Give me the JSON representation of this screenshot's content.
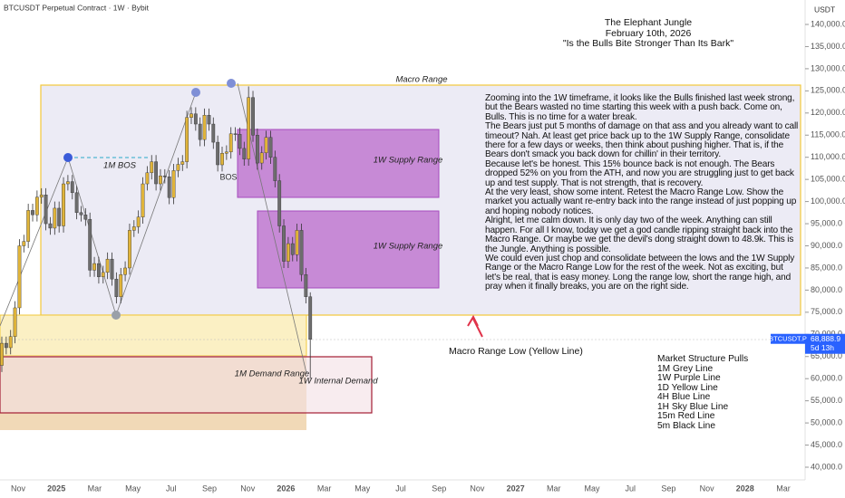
{
  "chart_data": {
    "type": "candlestick",
    "header": "BTCUSDT Perpetual Contract · 1W · Bybit",
    "currency": "USDT",
    "title_lines": [
      "The Elephant Jungle",
      "February 10th, 2026",
      "\"Is the Bulls Bite Stronger Than Its Bark\""
    ],
    "categories": [
      "Nov",
      "2025",
      "Mar",
      "May",
      "Jul",
      "Sep",
      "Nov",
      "2026",
      "Mar",
      "May",
      "Jul",
      "Sep",
      "Nov",
      "2027",
      "Mar",
      "May",
      "Jul",
      "Sep",
      "Nov",
      "2028",
      "Mar"
    ],
    "ylim": [
      40000,
      140000
    ],
    "yticks": [
      {
        "value": 40000,
        "label": "40,000.0"
      },
      {
        "value": 45000,
        "label": "45,000.0"
      },
      {
        "value": 50000,
        "label": "50,000.0"
      },
      {
        "value": 55000,
        "label": "55,000.0"
      },
      {
        "value": 60000,
        "label": "60,000.0"
      },
      {
        "value": 65000,
        "label": "65,000.0"
      },
      {
        "value": 70000,
        "label": "70,000.0"
      },
      {
        "value": 75000,
        "label": "75,000.0"
      },
      {
        "value": 80000,
        "label": "80,000.0"
      },
      {
        "value": 85000,
        "label": "85,000.0"
      },
      {
        "value": 90000,
        "label": "90,000.0"
      },
      {
        "value": 95000,
        "label": "95,000.0"
      },
      {
        "value": 100000,
        "label": "100,000.0"
      },
      {
        "value": 105000,
        "label": "105,000.0"
      },
      {
        "value": 110000,
        "label": "110,000.0"
      },
      {
        "value": 115000,
        "label": "115,000.0"
      },
      {
        "value": 120000,
        "label": "120,000.0"
      },
      {
        "value": 125000,
        "label": "125,000.0"
      },
      {
        "value": 130000,
        "label": "130,000.0"
      },
      {
        "value": 135000,
        "label": "135,000.0"
      },
      {
        "value": 140000,
        "label": "140,000.0"
      }
    ],
    "up_color": "#e0b43a",
    "down_color": "#6d6d6d",
    "open": [
      63000,
      68000,
      67000,
      69500,
      76000,
      90000,
      91000,
      98000,
      97000,
      101000,
      101500,
      95000,
      94000,
      98500,
      94500,
      104000,
      104500,
      102000,
      97500,
      97000,
      96000,
      84500,
      86000,
      83000,
      84000,
      87000,
      82500,
      78500,
      83500,
      85000,
      93500,
      94300,
      96500,
      104000,
      106500,
      109000,
      104000,
      105800,
      105600,
      100900,
      107000,
      108400,
      109000,
      119000,
      119800,
      117500,
      114000,
      119500,
      117500,
      113400,
      108300,
      110900,
      111200,
      115300,
      115200,
      112000,
      109600,
      123500,
      115000,
      108700,
      111000,
      114500,
      110000,
      104700,
      94500,
      86500,
      90500,
      88000,
      93500,
      83500,
      78500
    ],
    "high": [
      69500,
      69500,
      71000,
      77500,
      91500,
      92500,
      99500,
      99500,
      102500,
      103000,
      103000,
      96500,
      100000,
      100000,
      105500,
      106000,
      106000,
      103500,
      99000,
      98500,
      97500,
      87500,
      87500,
      85500,
      88500,
      88500,
      84000,
      85000,
      86500,
      95000,
      95800,
      98000,
      105500,
      108000,
      110500,
      110500,
      107300,
      107300,
      107100,
      108500,
      109900,
      110500,
      120500,
      121300,
      121300,
      119000,
      121000,
      121000,
      119000,
      114900,
      112400,
      112700,
      116800,
      116800,
      116700,
      113500,
      126000,
      125000,
      116500,
      112500,
      116000,
      116000,
      111500,
      106200,
      96000,
      92000,
      92000,
      95000,
      95000,
      85000,
      79500
    ],
    "low": [
      61500,
      65500,
      65500,
      68000,
      74500,
      88500,
      89500,
      95500,
      95500,
      99500,
      93500,
      92500,
      92500,
      93000,
      93000,
      102500,
      100500,
      96000,
      95500,
      94500,
      83000,
      83000,
      81500,
      81500,
      82500,
      81000,
      77000,
      77000,
      82000,
      83500,
      92000,
      92800,
      95000,
      102500,
      105000,
      102500,
      102500,
      104100,
      99400,
      99400,
      105500,
      106900,
      107500,
      117500,
      116000,
      112500,
      112500,
      116000,
      111900,
      106800,
      106800,
      109400,
      109700,
      113700,
      110500,
      108100,
      108100,
      113500,
      107200,
      107200,
      109500,
      108500,
      103200,
      93000,
      85000,
      85000,
      86500,
      86500,
      82000,
      77000,
      60000
    ],
    "close": [
      68000,
      67000,
      69500,
      76000,
      90000,
      91000,
      98000,
      97000,
      101000,
      101500,
      95000,
      94000,
      98500,
      94500,
      104000,
      104500,
      102000,
      97500,
      97000,
      96000,
      84500,
      86000,
      83000,
      84000,
      87000,
      82500,
      78500,
      83500,
      85000,
      93500,
      94300,
      96500,
      104000,
      106500,
      109000,
      104000,
      105800,
      105600,
      100900,
      107000,
      108400,
      109000,
      119000,
      119800,
      117500,
      114000,
      119500,
      117500,
      113400,
      108300,
      110900,
      111200,
      115300,
      115200,
      112000,
      109600,
      123500,
      115000,
      108700,
      111000,
      114500,
      110000,
      104700,
      94500,
      86500,
      90500,
      88000,
      93500,
      83500,
      78500,
      68888.9
    ],
    "last_price": {
      "symbol": "BTCUSDT.P",
      "value": 68888.9,
      "label": "68,888.9",
      "countdown": "5d 13h"
    },
    "zones": {
      "macro": "Macro Range",
      "supply_upper": "1W Supply Range",
      "supply_lower": "1W Supply Range",
      "demand": "1M Demand Range",
      "internal_demand": "1W Internal Demand"
    },
    "markers": {
      "bos_monthly": "1M BOS",
      "bos": "BOS"
    },
    "macro_low_note": "Macro Range Low (Yellow Line)",
    "commentary": [
      "Zooming into the 1W timeframe, it looks like the Bulls finished last week strong, but the Bears wasted no time starting this week with a push back. Come on, Bulls. This is no time for a water break.",
      "The Bears just put 5 months of damage on that ass and you already want to call timeout? Nah. At least get price back up to the 1W Supply Range, consolidate there for a few days or weeks, then think about pushing higher. That is, if the Bears don't smack you back down for chillin' in their territory.",
      "Because let's be honest. This 15% bounce back is not enough. The Bears dropped 52% on you from the ATH, and now you are struggling just to get back up and test supply. That is not strength, that is recovery.",
      "At the very least, show some intent. Retest the Macro Range Low. Show the market you actually want re-entry back into the range instead of just popping up and hoping nobody notices.",
      "Alright, let me calm down. It is only day two of the week. Anything can still happen. For all I know, today we get a god candle ripping straight back into the Macro Range. Or maybe we get the devil's dong straight down to 48.9k. This is the Jungle. Anything is possible.",
      "We could even just chop and consolidate between the lows and the 1W Supply Range or the Macro Range Low for the rest of the week. Not as exciting, but let's be real, that is easy money. Long the range low, short the range high, and pray when it finally breaks, you are on the right side."
    ],
    "legend_title": "Market Structure Pulls",
    "legend_items": [
      "1M Grey Line",
      "1W Purple Line",
      "1D Yellow Line",
      "4H Blue Line",
      "1H Sky Blue Line",
      "15m Red Line",
      "5m Black Line"
    ]
  }
}
